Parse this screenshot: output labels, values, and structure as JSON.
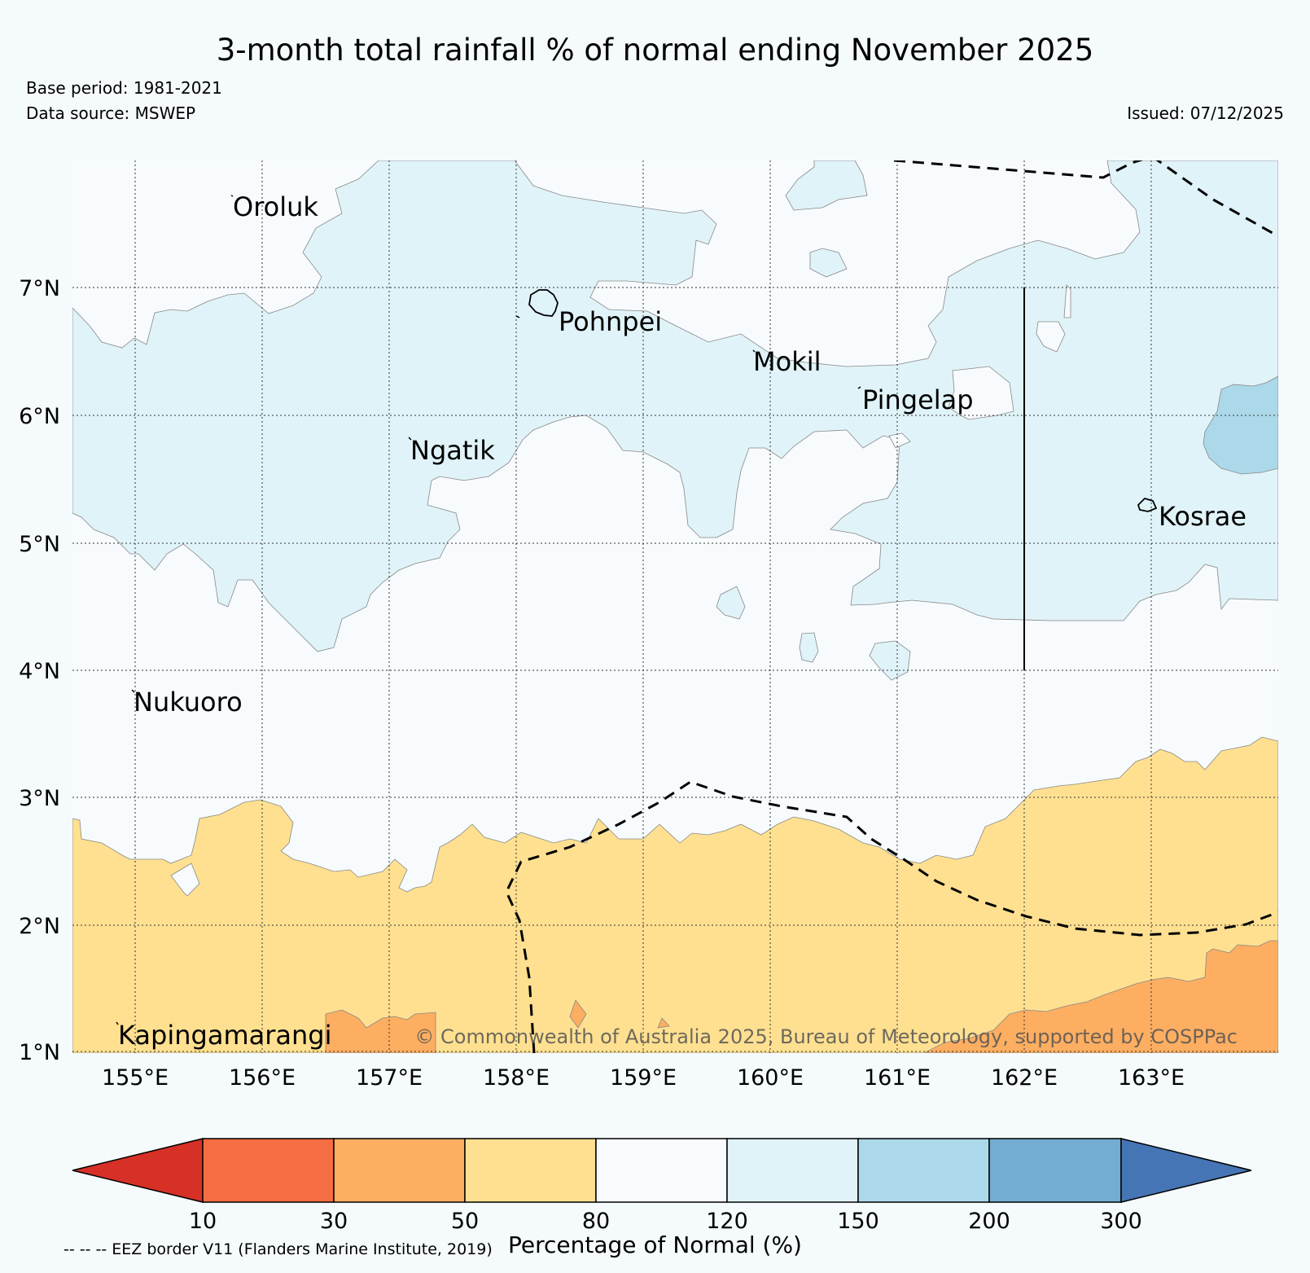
{
  "title": "3-month total rainfall % of normal ending November 2025",
  "base_period": "Base period: 1981-2021",
  "data_source": "Data source: MSWEP",
  "issued": "Issued: 07/12/2025",
  "copyright": "© Commonwealth of Australia 2025, Bureau of Meteorology, supported by COSPPac",
  "eez_note": "-- -- -- EEZ border V11 (Flanders Marine Institute, 2019)",
  "colorbar": {
    "label": "Percentage of Normal (%)",
    "ticks": [
      "10",
      "30",
      "50",
      "80",
      "120",
      "150",
      "200",
      "300"
    ],
    "colors": [
      "#d73027",
      "#f46d43",
      "#fdae61",
      "#fee090",
      "#f7fbfd",
      "#e0f3f8",
      "#abd9e9",
      "#74add1",
      "#4575b4"
    ]
  },
  "axes": {
    "lon_labels": [
      "155°E",
      "156°E",
      "157°E",
      "158°E",
      "159°E",
      "160°E",
      "161°E",
      "162°E",
      "163°E"
    ],
    "lat_labels": [
      "7°N",
      "6°N",
      "5°N",
      "4°N",
      "3°N",
      "2°N",
      "1°N"
    ]
  },
  "places": [
    "Oroluk",
    "Pohnpei",
    "Mokil",
    "Pingelap",
    "Ngatik",
    "Kosrae",
    "Nukuoro",
    "Kapingamarangi"
  ]
}
